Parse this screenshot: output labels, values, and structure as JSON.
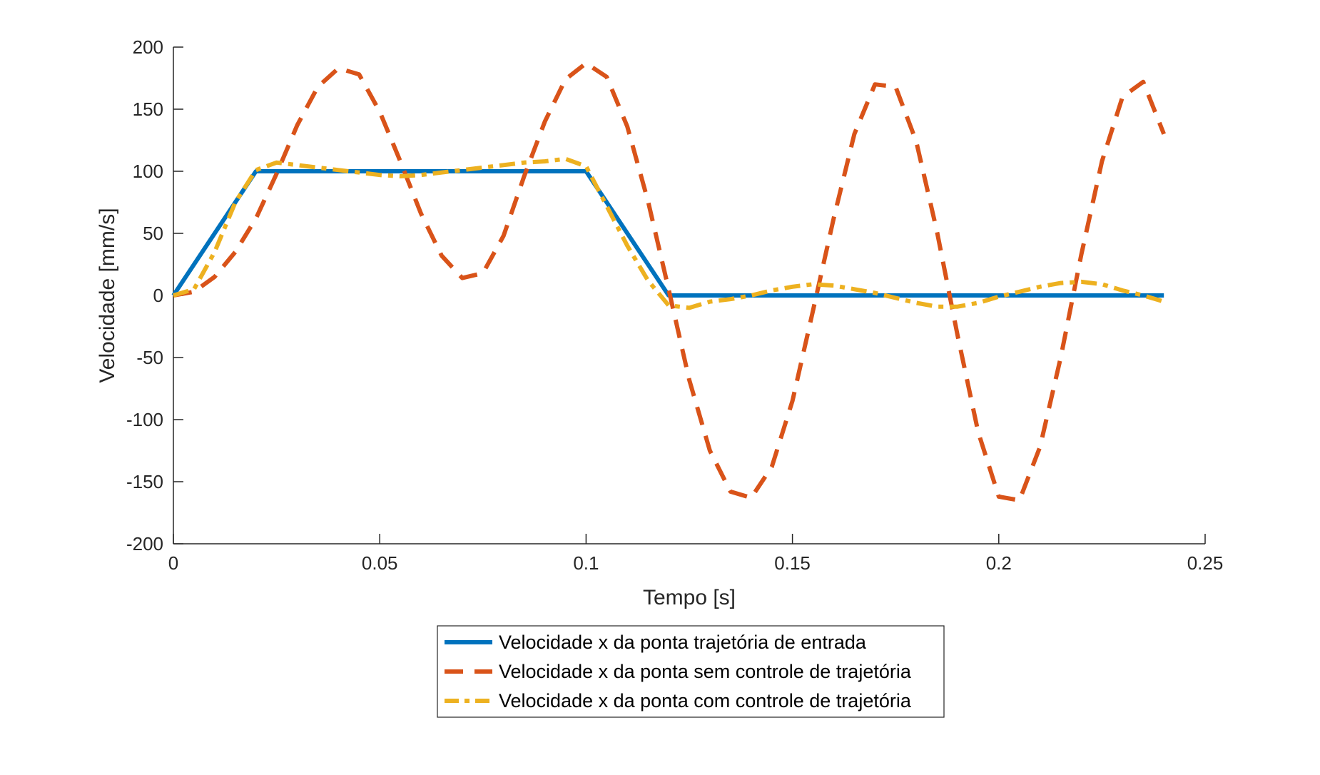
{
  "chart_data": {
    "type": "line",
    "title": "",
    "xlabel": "Tempo [s]",
    "ylabel": "Velocidade [mm/s]",
    "xlim": [
      0,
      0.25
    ],
    "ylim": [
      -200,
      200
    ],
    "x_ticks": [
      0,
      0.05,
      0.1,
      0.15,
      0.2,
      0.25
    ],
    "x_tick_labels": [
      "0",
      "0.05",
      "0.1",
      "0.15",
      "0.2",
      "0.25"
    ],
    "y_ticks": [
      200,
      150,
      100,
      50,
      0,
      -50,
      -100,
      -150,
      -200
    ],
    "y_tick_labels": [
      "200",
      "150",
      "100",
      "50",
      "0",
      "-50",
      "-100",
      "-150",
      "-200"
    ],
    "grid": false,
    "legend_position": "bottom-center-outside",
    "series": [
      {
        "name": "Velocidade x da ponta trajetória de entrada",
        "color": "#0072BD",
        "style": "solid",
        "x": [
          0,
          0.02,
          0.1,
          0.12,
          0.24
        ],
        "y": [
          0,
          100,
          100,
          0,
          0
        ]
      },
      {
        "name": "Velocidade x da ponta sem controle de trajetória",
        "color": "#D95319",
        "style": "dashed",
        "x": [
          0,
          0.005,
          0.01,
          0.015,
          0.02,
          0.025,
          0.03,
          0.035,
          0.04,
          0.045,
          0.05,
          0.055,
          0.06,
          0.065,
          0.07,
          0.075,
          0.08,
          0.085,
          0.09,
          0.095,
          0.1,
          0.105,
          0.11,
          0.115,
          0.12,
          0.125,
          0.13,
          0.135,
          0.14,
          0.145,
          0.15,
          0.155,
          0.16,
          0.165,
          0.17,
          0.175,
          0.18,
          0.185,
          0.19,
          0.195,
          0.2,
          0.205,
          0.21,
          0.215,
          0.22,
          0.225,
          0.23,
          0.235,
          0.24
        ],
        "y": [
          0,
          3,
          15,
          35,
          62,
          98,
          137,
          168,
          183,
          178,
          148,
          108,
          66,
          32,
          14,
          18,
          48,
          96,
          140,
          174,
          187,
          176,
          136,
          76,
          5,
          -68,
          -125,
          -158,
          -163,
          -138,
          -85,
          -12,
          62,
          130,
          170,
          168,
          124,
          52,
          -32,
          -110,
          -162,
          -165,
          -122,
          -50,
          33,
          108,
          160,
          172,
          130
        ]
      },
      {
        "name": "Velocidade x da ponta com controle de trajetória",
        "color": "#EDB120",
        "style": "dashdot",
        "x": [
          0,
          0.005,
          0.01,
          0.015,
          0.02,
          0.025,
          0.03,
          0.035,
          0.04,
          0.045,
          0.05,
          0.055,
          0.06,
          0.065,
          0.07,
          0.075,
          0.08,
          0.085,
          0.09,
          0.095,
          0.1,
          0.105,
          0.11,
          0.115,
          0.12,
          0.125,
          0.13,
          0.135,
          0.14,
          0.145,
          0.15,
          0.155,
          0.16,
          0.165,
          0.17,
          0.175,
          0.18,
          0.185,
          0.19,
          0.195,
          0.2,
          0.205,
          0.21,
          0.215,
          0.22,
          0.225,
          0.23,
          0.235,
          0.24
        ],
        "y": [
          0,
          5,
          35,
          75,
          101,
          107,
          105,
          103,
          101,
          99,
          97,
          96,
          97,
          99,
          101,
          103,
          105,
          107,
          108,
          110,
          104,
          72,
          40,
          12,
          -8,
          -10,
          -5,
          -3,
          0,
          4,
          7,
          9,
          8,
          5,
          2,
          -2,
          -6,
          -9,
          -9,
          -6,
          -1,
          3,
          7,
          10,
          11,
          9,
          4,
          0,
          -5
        ]
      }
    ]
  }
}
